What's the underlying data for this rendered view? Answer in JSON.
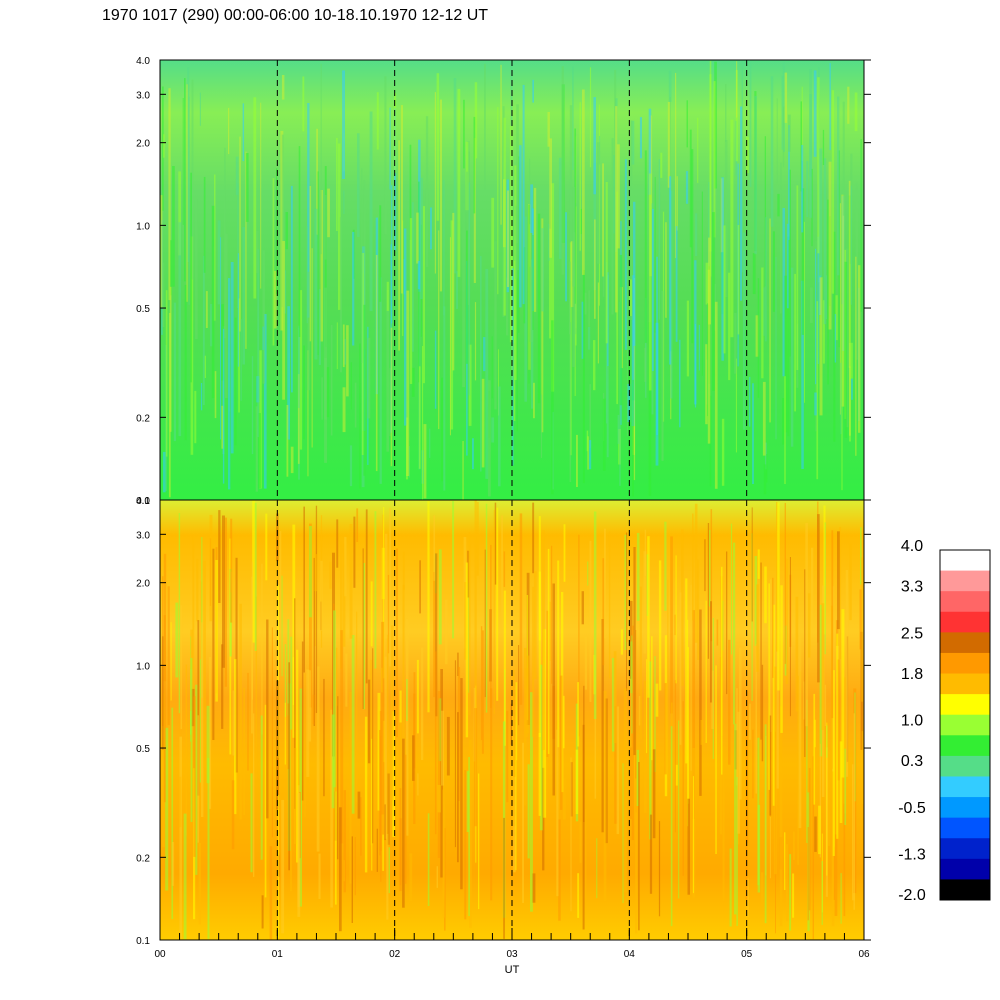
{
  "title": "1970 1017 (290) 00:00-06:00 10-18.10.1970  12-12 UT",
  "chart_data": {
    "type": "heatmap",
    "xlabel": "UT",
    "x_ticks": [
      "00",
      "01",
      "02",
      "03",
      "04",
      "05",
      "06"
    ],
    "x_range": [
      0,
      6
    ],
    "dashed_vlines_hours": [
      1,
      2,
      3,
      4,
      5
    ],
    "y_scale": "log",
    "panels": [
      {
        "name": "upper",
        "y_range": [
          0.1,
          4.0
        ],
        "y_ticks": [
          "0.1",
          "0.2",
          "0.5",
          "1.0",
          "2.0",
          "3.0",
          "4.0"
        ],
        "y_tick_values": [
          0.1,
          0.2,
          0.5,
          1.0,
          2.0,
          3.0,
          4.0
        ],
        "dominant_levels": [
          0.3,
          1.0,
          -0.5
        ]
      },
      {
        "name": "lower",
        "y_range": [
          0.1,
          4.0
        ],
        "y_ticks": [
          "0.1",
          "0.2",
          "0.5",
          "1.0",
          "2.0",
          "3.0",
          "4.0"
        ],
        "y_tick_values": [
          0.1,
          0.2,
          0.5,
          1.0,
          2.0,
          3.0,
          4.0
        ],
        "dominant_levels": [
          1.0,
          1.4,
          1.8
        ]
      }
    ],
    "colorbar": {
      "labels": [
        "4.0",
        "3.3",
        "2.5",
        "1.8",
        "1.0",
        "0.3",
        "-0.5",
        "-1.3",
        "-2.0"
      ],
      "label_values": [
        4.0,
        3.3,
        2.5,
        1.8,
        1.0,
        0.3,
        -0.5,
        -1.3,
        -2.0
      ],
      "colors_top_to_bottom": [
        "#ffffff",
        "#ff9999",
        "#ff6666",
        "#ff3333",
        "#d26b00",
        "#ff9900",
        "#ffbb00",
        "#ffff00",
        "#99ff33",
        "#33ee33",
        "#55dd88",
        "#33ccff",
        "#0099ff",
        "#0055ff",
        "#0022cc",
        "#0000aa",
        "#000000"
      ]
    }
  }
}
